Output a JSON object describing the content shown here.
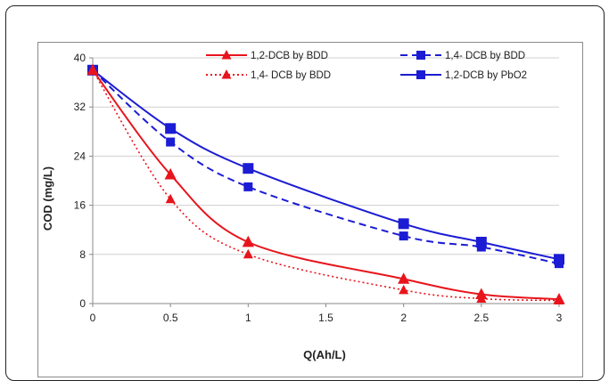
{
  "chart_data": {
    "type": "line",
    "xlabel": "Q(Ah/L)",
    "ylabel": "COD (mg/L)",
    "xlim": [
      0,
      3
    ],
    "ylim": [
      0,
      40
    ],
    "x_ticks": [
      "0",
      "0.5",
      "1",
      "1.5",
      "2",
      "2.5",
      "3"
    ],
    "y_ticks": [
      "0",
      "8",
      "16",
      "24",
      "32",
      "40"
    ],
    "grid": "horizontal",
    "legend_position": "top",
    "series": [
      {
        "name": "1,2-DCB by BDD",
        "color": "#e8141c",
        "line_style": "solid",
        "marker": "triangle",
        "x": [
          0,
          0.5,
          1,
          2,
          2.5,
          3
        ],
        "values": [
          38,
          21,
          10,
          4,
          1.5,
          0.7
        ]
      },
      {
        "name": "1,4- DCB by BDD",
        "color": "#e8141c",
        "line_style": "dotted",
        "marker": "triangle",
        "x": [
          0,
          0.5,
          1,
          2,
          2.5,
          3
        ],
        "values": [
          38,
          17,
          8,
          2.2,
          0.8,
          0.5
        ]
      },
      {
        "name": "1,4- DCB by BDD",
        "color": "#1c1cd4",
        "line_style": "dashed",
        "marker": "square",
        "x": [
          0,
          0.5,
          1,
          2,
          2.5,
          3
        ],
        "values": [
          38,
          26.3,
          19,
          11,
          9.2,
          6.5
        ]
      },
      {
        "name": "1,2-DCB by PbO2",
        "color": "#1c1cd4",
        "line_style": "solid",
        "marker": "square",
        "x": [
          0,
          0.5,
          1,
          2,
          2.5,
          3
        ],
        "values": [
          38,
          28.5,
          22,
          13,
          10,
          7.2
        ]
      }
    ]
  }
}
